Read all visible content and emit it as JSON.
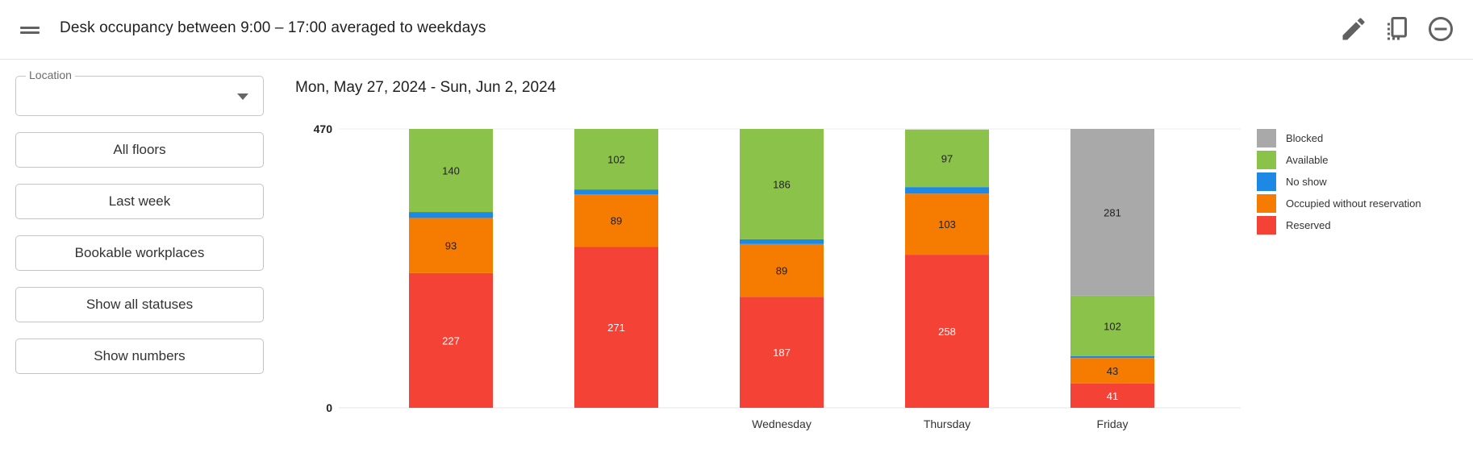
{
  "header": {
    "title": "Desk occupancy between 9:00 – 17:00 averaged to weekdays",
    "icons": [
      "menu-icon",
      "edit-icon",
      "copy-icon",
      "remove-icon"
    ]
  },
  "sidebar": {
    "location_label": "Location",
    "location_value": "",
    "buttons": [
      "All floors",
      "Last week",
      "Bookable workplaces",
      "Show all statuses",
      "Show numbers"
    ]
  },
  "date_range": "Mon, May 27, 2024 - Sun, Jun 2, 2024",
  "chart_data": {
    "type": "bar",
    "stacked": true,
    "categories": [
      "",
      "",
      "Wednesday",
      "Thursday",
      "Friday"
    ],
    "y_tick_labels": [
      "0",
      "470"
    ],
    "ylim": [
      0,
      470
    ],
    "grid": true,
    "legend_position": "right",
    "series": [
      {
        "name": "Reserved",
        "color": "#f44336",
        "label_color": "#ffffff",
        "values": [
          227,
          271,
          187,
          258,
          41
        ]
      },
      {
        "name": "Occupied without reservation",
        "color": "#f57c00",
        "label_color": "#222222",
        "values": [
          93,
          89,
          89,
          103,
          43
        ]
      },
      {
        "name": "No show",
        "color": "#1e88e5",
        "label_color": "#222222",
        "values": [
          10,
          8,
          8,
          11,
          3
        ]
      },
      {
        "name": "Available",
        "color": "#8bc34a",
        "label_color": "#222222",
        "values": [
          140,
          102,
          186,
          97,
          102
        ]
      },
      {
        "name": "Blocked",
        "color": "#a9a9a9",
        "label_color": "#222222",
        "values": [
          0,
          0,
          0,
          0,
          281
        ]
      }
    ],
    "shown_value_labels": [
      "Reserved",
      "Occupied without reservation",
      "Available",
      "Blocked"
    ],
    "legend_order": [
      "Blocked",
      "Available",
      "No show",
      "Occupied without reservation",
      "Reserved"
    ]
  }
}
